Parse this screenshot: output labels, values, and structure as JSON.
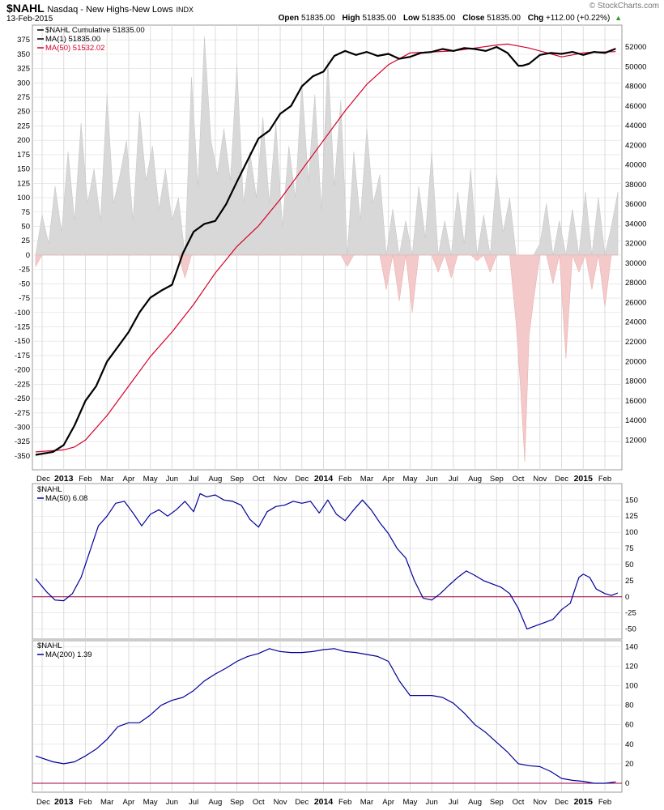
{
  "header": {
    "symbol": "$NAHL",
    "description": "Nasdaq - New Highs-New Lows",
    "exchange": "INDX",
    "date": "13-Feb-2015",
    "open_label": "Open",
    "open": "51835.00",
    "high_label": "High",
    "high": "51835.00",
    "low_label": "Low",
    "low": "51835.00",
    "close_label": "Close",
    "close": "51835.00",
    "chg_label": "Chg",
    "chg": "+112.00 (+0.22%)",
    "brand": "© StockCharts.com"
  },
  "colors": {
    "black": "#000000",
    "red": "#d4002a",
    "navy": "#00009a",
    "fill_pos": "#d8d8d8",
    "fill_neg": "#f3c9c9",
    "grid": "#dcdcdc"
  },
  "x_axis": {
    "labels": [
      {
        "t": 0,
        "text": "Dec",
        "bold": false
      },
      {
        "t": 1,
        "text": "2013",
        "bold": true
      },
      {
        "t": 2,
        "text": "Feb",
        "bold": false
      },
      {
        "t": 3,
        "text": "Mar",
        "bold": false
      },
      {
        "t": 4,
        "text": "Apr",
        "bold": false
      },
      {
        "t": 5,
        "text": "May",
        "bold": false
      },
      {
        "t": 6,
        "text": "Jun",
        "bold": false
      },
      {
        "t": 7,
        "text": "Jul",
        "bold": false
      },
      {
        "t": 8,
        "text": "Aug",
        "bold": false
      },
      {
        "t": 9,
        "text": "Sep",
        "bold": false
      },
      {
        "t": 10,
        "text": "Oct",
        "bold": false
      },
      {
        "t": 11,
        "text": "Nov",
        "bold": false
      },
      {
        "t": 12,
        "text": "Dec",
        "bold": false
      },
      {
        "t": 13,
        "text": "2014",
        "bold": true
      },
      {
        "t": 14,
        "text": "Feb",
        "bold": false
      },
      {
        "t": 15,
        "text": "Mar",
        "bold": false
      },
      {
        "t": 16,
        "text": "Apr",
        "bold": false
      },
      {
        "t": 17,
        "text": "May",
        "bold": false
      },
      {
        "t": 18,
        "text": "Jun",
        "bold": false
      },
      {
        "t": 19,
        "text": "Jul",
        "bold": false
      },
      {
        "t": 20,
        "text": "Aug",
        "bold": false
      },
      {
        "t": 21,
        "text": "Sep",
        "bold": false
      },
      {
        "t": 22,
        "text": "Oct",
        "bold": false
      },
      {
        "t": 23,
        "text": "Nov",
        "bold": false
      },
      {
        "t": 24,
        "text": "Dec",
        "bold": false
      },
      {
        "t": 25,
        "text": "2015",
        "bold": true
      },
      {
        "t": 26,
        "text": "Feb",
        "bold": false
      }
    ]
  },
  "chart_data": [
    {
      "type": "line",
      "legend": [
        "$NAHL Cumulative 51835.00",
        "MA(1) 51835.00",
        "MA(50) 51532.02"
      ],
      "left_axis_ticks": [
        375,
        350,
        325,
        300,
        275,
        250,
        225,
        200,
        175,
        150,
        125,
        100,
        75,
        50,
        25,
        0,
        -25,
        -50,
        -75,
        -100,
        -125,
        -150,
        -175,
        -200,
        -225,
        -250,
        -275,
        -300,
        -325,
        -350
      ],
      "right_axis_ticks": [
        52000,
        50000,
        48000,
        46000,
        44000,
        42000,
        40000,
        38000,
        36000,
        34000,
        32000,
        30000,
        28000,
        26000,
        24000,
        22000,
        20000,
        18000,
        16000,
        14000,
        12000
      ],
      "left_ylim": [
        -360,
        395
      ],
      "right_ylim": [
        9800,
        53900
      ],
      "series": [
        {
          "name": "$NAHL Cumulative",
          "axis": "right",
          "x": [
            -0.3,
            0.5,
            1.0,
            1.5,
            2.0,
            2.5,
            3.0,
            3.5,
            4.0,
            4.5,
            5.0,
            5.5,
            6.0,
            6.5,
            7.0,
            7.5,
            8.0,
            8.5,
            9.0,
            9.5,
            10.0,
            10.5,
            11.0,
            11.5,
            12.0,
            12.5,
            13.0,
            13.5,
            14.0,
            14.5,
            15.0,
            15.5,
            16.0,
            16.5,
            17.0,
            17.5,
            18.0,
            18.5,
            19.0,
            19.5,
            20.0,
            20.5,
            21.0,
            21.5,
            22.0,
            22.2,
            22.5,
            23.0,
            23.5,
            24.0,
            24.5,
            25.0,
            25.5,
            26.0,
            26.5
          ],
          "y": [
            10500,
            10800,
            11500,
            13500,
            16000,
            17500,
            20000,
            21500,
            23000,
            25000,
            26500,
            27200,
            27800,
            31000,
            33200,
            34000,
            34300,
            36000,
            38300,
            40500,
            42700,
            43500,
            45200,
            46000,
            48000,
            49000,
            49500,
            51100,
            51600,
            51200,
            51500,
            51100,
            51300,
            50800,
            51000,
            51400,
            51500,
            51800,
            51600,
            51900,
            51800,
            51600,
            52000,
            51400,
            50100,
            50100,
            50300,
            51200,
            51400,
            51300,
            51500,
            51200,
            51500,
            51400,
            51835
          ]
        },
        {
          "name": "MA(50)",
          "axis": "right",
          "x": [
            -0.3,
            1.0,
            1.5,
            2.0,
            3.0,
            4.0,
            5.0,
            6.0,
            7.0,
            8.0,
            9.0,
            10.0,
            11.0,
            12.0,
            13.0,
            14.0,
            15.0,
            16.0,
            17.0,
            18.0,
            19.0,
            20.0,
            21.0,
            21.5,
            22.0,
            22.5,
            23.0,
            23.5,
            24.0,
            24.5,
            25.0,
            25.5,
            26.0,
            26.5
          ],
          "y": [
            10800,
            11000,
            11300,
            12000,
            14500,
            17500,
            20500,
            23000,
            25800,
            29000,
            31700,
            33800,
            36500,
            39500,
            42500,
            45500,
            48200,
            50200,
            51400,
            51500,
            51600,
            51900,
            52200,
            52300,
            52100,
            51900,
            51600,
            51300,
            51000,
            51200,
            51400,
            51500,
            51500,
            51532
          ]
        },
        {
          "name": "$NAHL",
          "axis": "left",
          "style": "histogram",
          "x": [
            -0.3,
            0.0,
            0.3,
            0.6,
            0.9,
            1.2,
            1.5,
            1.8,
            2.1,
            2.4,
            2.7,
            3.0,
            3.3,
            3.6,
            3.9,
            4.2,
            4.5,
            4.8,
            5.1,
            5.4,
            5.7,
            6.0,
            6.3,
            6.6,
            6.9,
            7.2,
            7.5,
            7.8,
            8.1,
            8.4,
            8.7,
            9.0,
            9.3,
            9.6,
            9.9,
            10.2,
            10.5,
            10.8,
            11.1,
            11.4,
            11.7,
            12.0,
            12.3,
            12.6,
            12.9,
            13.2,
            13.5,
            13.8,
            14.1,
            14.4,
            14.7,
            15.0,
            15.3,
            15.6,
            15.9,
            16.2,
            16.5,
            16.8,
            17.1,
            17.4,
            17.7,
            18.0,
            18.3,
            18.6,
            18.9,
            19.2,
            19.5,
            19.8,
            20.1,
            20.4,
            20.7,
            21.0,
            21.3,
            21.6,
            21.9,
            22.1,
            22.3,
            22.5,
            22.7,
            23.0,
            23.3,
            23.6,
            23.9,
            24.2,
            24.5,
            24.8,
            25.1,
            25.4,
            25.7,
            26.0,
            26.3,
            26.6
          ],
          "y": [
            -20,
            70,
            20,
            120,
            40,
            180,
            60,
            230,
            90,
            150,
            60,
            280,
            90,
            140,
            200,
            60,
            250,
            130,
            190,
            80,
            150,
            60,
            100,
            -40,
            310,
            120,
            380,
            200,
            140,
            220,
            130,
            330,
            90,
            180,
            100,
            240,
            90,
            230,
            50,
            190,
            100,
            300,
            130,
            280,
            80,
            340,
            120,
            270,
            -20,
            180,
            60,
            220,
            90,
            140,
            -60,
            80,
            -80,
            60,
            -100,
            120,
            30,
            180,
            -30,
            60,
            -40,
            110,
            20,
            150,
            -10,
            70,
            -30,
            140,
            40,
            100,
            -120,
            -230,
            -360,
            -140,
            -80,
            20,
            90,
            -50,
            60,
            -180,
            80,
            -30,
            110,
            -60,
            100,
            -90,
            50,
            110
          ]
        }
      ]
    },
    {
      "type": "line",
      "legend": [
        "$NAHL",
        "MA(50) 6.08"
      ],
      "right_axis_ticks": [
        150,
        125,
        100,
        75,
        50,
        25,
        0,
        -25,
        -50
      ],
      "ylim": [
        -58,
        168
      ],
      "reference_line": 0,
      "series": [
        {
          "name": "MA(50)",
          "x": [
            -0.3,
            0.2,
            0.6,
            1.0,
            1.4,
            1.8,
            2.2,
            2.6,
            3.0,
            3.4,
            3.8,
            4.2,
            4.6,
            5.0,
            5.4,
            5.8,
            6.2,
            6.6,
            7.0,
            7.3,
            7.6,
            8.0,
            8.4,
            8.8,
            9.2,
            9.6,
            10.0,
            10.4,
            10.8,
            11.2,
            11.6,
            12.0,
            12.4,
            12.8,
            13.2,
            13.6,
            14.0,
            14.4,
            14.8,
            15.2,
            15.6,
            16.0,
            16.4,
            16.8,
            17.2,
            17.6,
            18.0,
            18.4,
            18.8,
            19.2,
            19.6,
            20.0,
            20.4,
            20.8,
            21.2,
            21.6,
            22.0,
            22.4,
            22.8,
            23.2,
            23.6,
            24.0,
            24.4,
            24.8,
            25.0,
            25.3,
            25.6,
            26.0,
            26.3,
            26.6
          ],
          "y": [
            28,
            8,
            -5,
            -6,
            5,
            30,
            70,
            110,
            125,
            145,
            148,
            130,
            110,
            128,
            135,
            125,
            135,
            148,
            132,
            160,
            155,
            158,
            150,
            148,
            142,
            120,
            108,
            132,
            140,
            142,
            148,
            145,
            148,
            130,
            150,
            128,
            118,
            135,
            150,
            135,
            115,
            98,
            75,
            60,
            25,
            -2,
            -5,
            5,
            18,
            30,
            40,
            33,
            25,
            20,
            15,
            5,
            -18,
            -50,
            -45,
            -40,
            -35,
            -20,
            -10,
            30,
            35,
            30,
            12,
            5,
            2,
            6
          ]
        }
      ]
    },
    {
      "type": "line",
      "legend": [
        "$NAHL",
        "MA(200) 1.39"
      ],
      "right_axis_ticks": [
        140,
        120,
        100,
        80,
        60,
        40,
        20,
        0
      ],
      "ylim": [
        -5,
        142
      ],
      "reference_line": 0,
      "series": [
        {
          "name": "MA(200)",
          "x": [
            -0.3,
            0.5,
            1.0,
            1.5,
            2.0,
            2.5,
            3.0,
            3.5,
            4.0,
            4.5,
            5.0,
            5.5,
            6.0,
            6.5,
            7.0,
            7.5,
            8.0,
            8.5,
            9.0,
            9.5,
            10.0,
            10.5,
            11.0,
            11.5,
            12.0,
            12.5,
            13.0,
            13.5,
            14.0,
            14.5,
            15.0,
            15.5,
            16.0,
            16.5,
            17.0,
            17.5,
            18.0,
            18.5,
            19.0,
            19.5,
            20.0,
            20.5,
            21.0,
            21.5,
            22.0,
            22.5,
            23.0,
            23.5,
            24.0,
            24.5,
            25.0,
            25.5,
            26.0,
            26.5
          ],
          "y": [
            28,
            22,
            20,
            22,
            28,
            35,
            45,
            58,
            62,
            62,
            70,
            80,
            85,
            88,
            95,
            105,
            112,
            118,
            125,
            130,
            133,
            138,
            135,
            134,
            134,
            135,
            137,
            138,
            135,
            134,
            132,
            130,
            125,
            105,
            90,
            90,
            90,
            88,
            82,
            72,
            60,
            52,
            42,
            32,
            20,
            18,
            17,
            12,
            5,
            3,
            2,
            0,
            0,
            1.39
          ]
        }
      ]
    }
  ]
}
